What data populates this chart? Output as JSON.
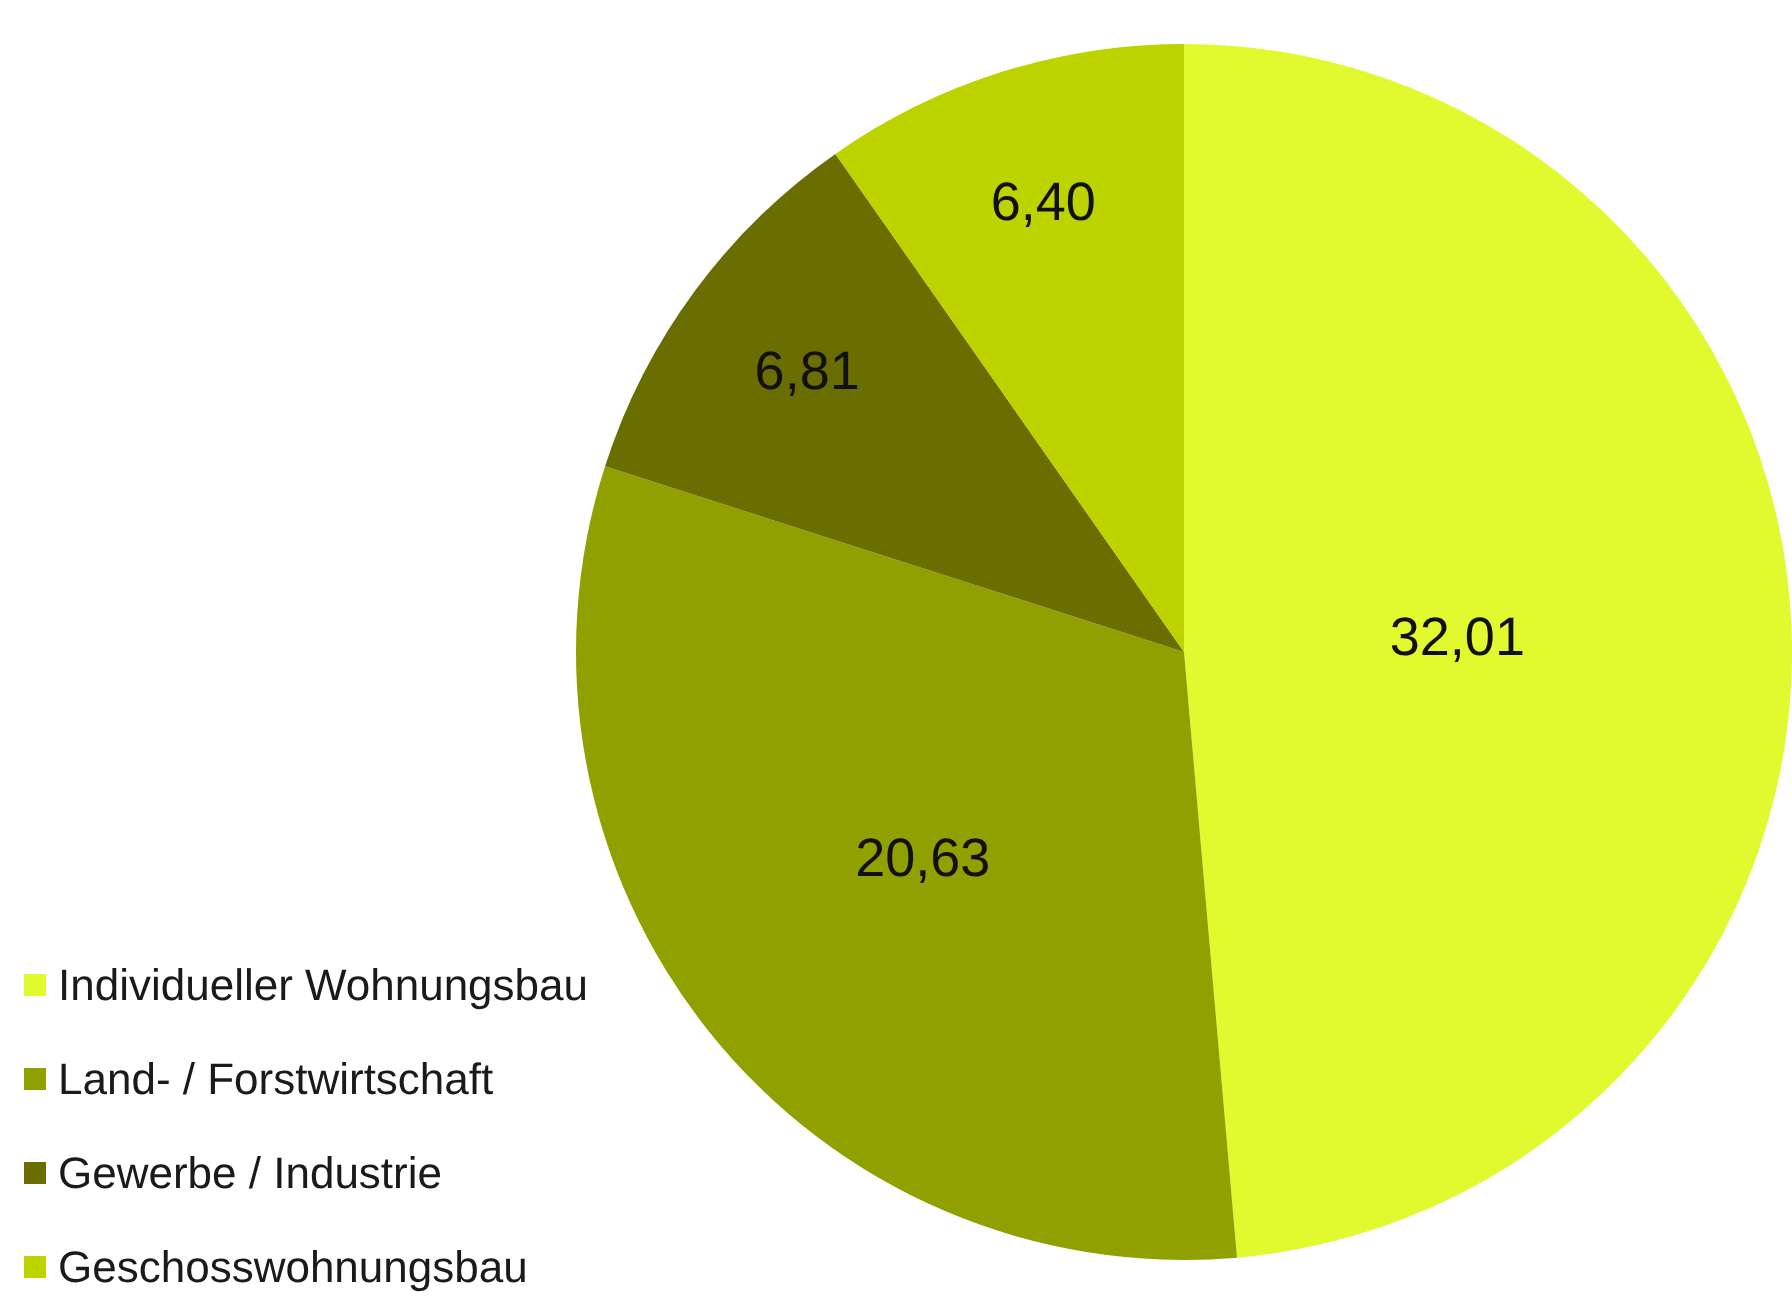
{
  "chart_data": {
    "type": "pie",
    "categories": [
      "Individueller Wohnungsbau",
      "Land- / Forstwirtschaft",
      "Gewerbe / Industrie",
      "Geschosswohnungsbau"
    ],
    "values": [
      32.01,
      20.63,
      6.81,
      6.4
    ],
    "colors": [
      "#e1f92f",
      "#8fa000",
      "#6a6d00",
      "#bdd300"
    ],
    "value_labels": [
      "32,01",
      "20,63",
      "6,81",
      "6,40"
    ],
    "legend": "bottom left"
  }
}
